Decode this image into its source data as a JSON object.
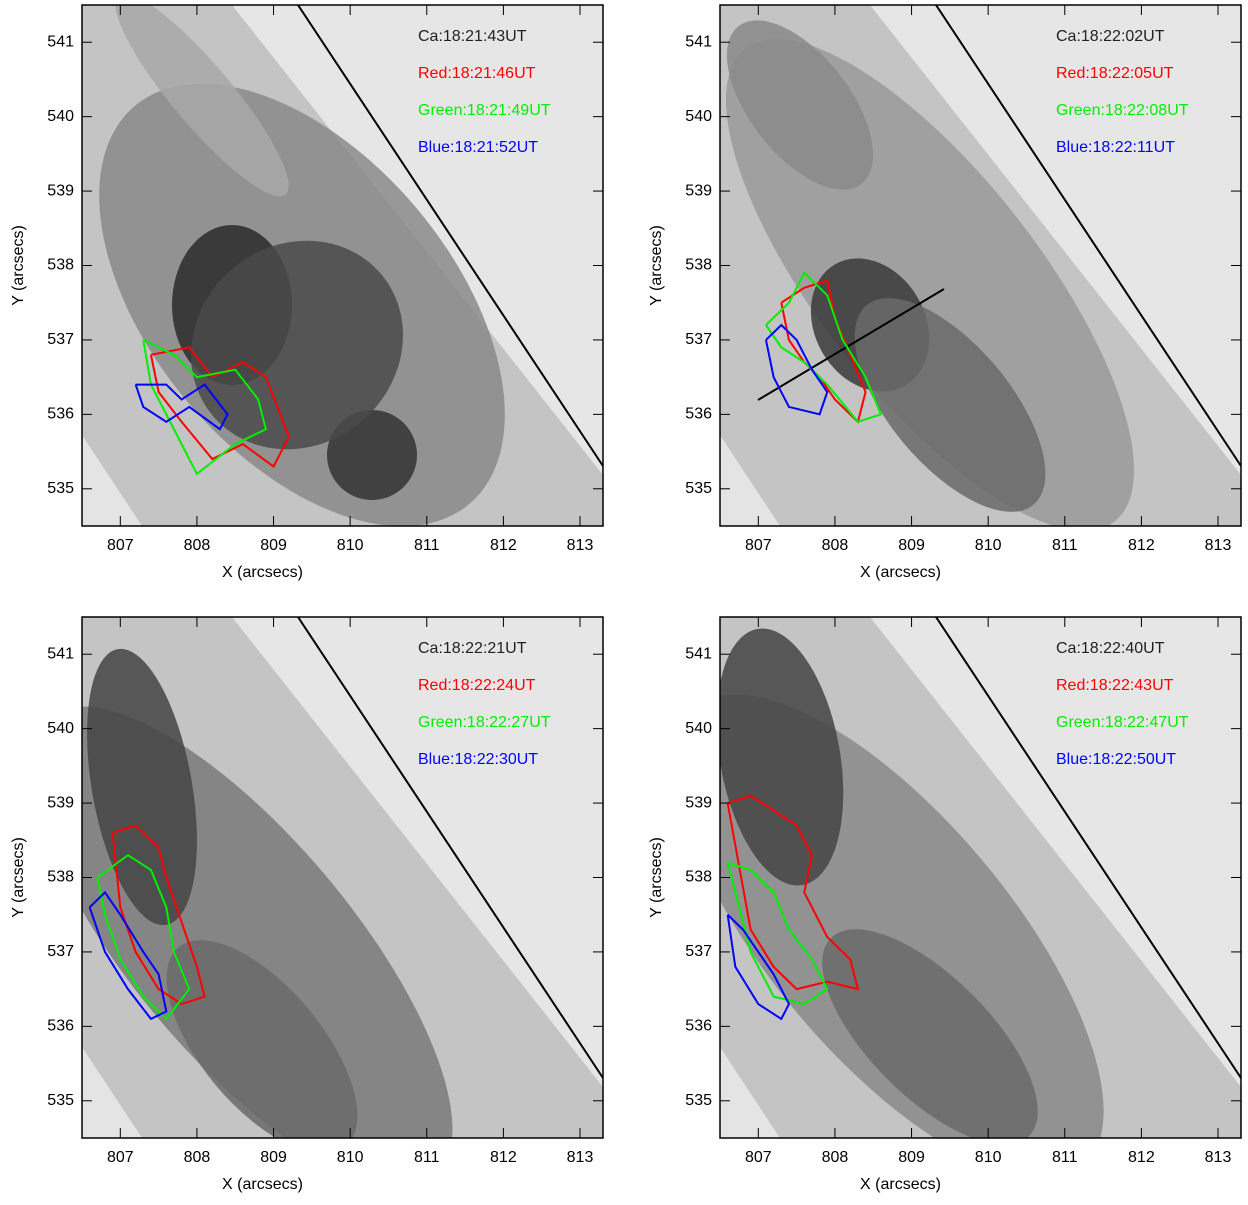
{
  "chart_data": [
    {
      "type": "image",
      "image_label": "Ca:18:21:43UT",
      "xlabel": "X (arcsecs)",
      "ylabel": "Y (arcsecs)",
      "xlim": [
        806.5,
        813.3
      ],
      "ylim": [
        534.5,
        541.5
      ],
      "xticks": [
        807,
        808,
        809,
        810,
        811,
        812,
        813
      ],
      "yticks": [
        535,
        536,
        537,
        538,
        539,
        540,
        541
      ],
      "series": [
        {
          "name": "Red:18:21:46UT",
          "color": "#ff0000",
          "x": [
            807.4,
            807.9,
            808.2,
            808.6,
            808.9,
            809.2,
            809.0,
            808.6,
            808.2,
            807.8,
            807.5,
            807.4
          ],
          "y": [
            536.8,
            536.9,
            536.5,
            536.7,
            536.5,
            535.7,
            535.3,
            535.6,
            535.4,
            535.9,
            536.3,
            536.8
          ]
        },
        {
          "name": "Green:18:21:49UT",
          "color": "#00ee00",
          "x": [
            807.3,
            807.7,
            808.0,
            808.5,
            808.8,
            808.9,
            808.5,
            808.0,
            807.8,
            807.6,
            807.4,
            807.3
          ],
          "y": [
            537.0,
            536.8,
            536.5,
            536.6,
            536.2,
            535.8,
            535.6,
            535.2,
            535.6,
            536.0,
            536.4,
            537.0
          ]
        },
        {
          "name": "Blue:18:21:52UT",
          "color": "#0000ff",
          "x": [
            807.2,
            807.6,
            807.8,
            808.1,
            808.4,
            808.3,
            807.9,
            807.6,
            807.3,
            807.2
          ],
          "y": [
            536.4,
            536.4,
            536.2,
            536.4,
            536.0,
            535.8,
            536.1,
            535.9,
            536.1,
            536.4
          ]
        }
      ]
    },
    {
      "type": "image",
      "image_label": "Ca:18:22:02UT",
      "xlabel": "X (arcsecs)",
      "ylabel": "Y (arcsecs)",
      "xlim": [
        806.5,
        813.3
      ],
      "ylim": [
        534.5,
        541.5
      ],
      "xticks": [
        807,
        808,
        809,
        810,
        811,
        812,
        813
      ],
      "yticks": [
        535,
        536,
        537,
        538,
        539,
        540,
        541
      ],
      "series": [
        {
          "name": "Red:18:22:05UT",
          "color": "#ff0000",
          "x": [
            807.3,
            807.6,
            807.9,
            808.0,
            808.2,
            808.4,
            808.3,
            808.0,
            807.8,
            807.6,
            807.4,
            807.3
          ],
          "y": [
            537.5,
            537.7,
            537.8,
            537.3,
            536.8,
            536.3,
            535.9,
            536.2,
            536.5,
            536.7,
            537.0,
            537.5
          ]
        },
        {
          "name": "Green:18:22:08UT",
          "color": "#00ee00",
          "x": [
            807.1,
            807.4,
            807.6,
            807.9,
            808.1,
            808.4,
            808.6,
            808.3,
            807.9,
            807.6,
            807.3,
            807.1
          ],
          "y": [
            537.2,
            537.5,
            537.9,
            537.6,
            537.0,
            536.5,
            536.0,
            535.9,
            536.4,
            536.7,
            536.9,
            537.2
          ]
        },
        {
          "name": "Blue:18:22:11UT",
          "color": "#0000ff",
          "x": [
            807.1,
            807.3,
            807.5,
            807.7,
            807.9,
            807.8,
            807.4,
            807.2,
            807.1
          ],
          "y": [
            537.0,
            537.2,
            537.0,
            536.6,
            536.3,
            536.0,
            536.1,
            536.5,
            537.0
          ]
        }
      ]
    },
    {
      "type": "image",
      "image_label": "Ca:18:22:21UT",
      "xlabel": "X (arcsecs)",
      "ylabel": "Y (arcsecs)",
      "xlim": [
        806.5,
        813.3
      ],
      "ylim": [
        534.5,
        541.5
      ],
      "xticks": [
        807,
        808,
        809,
        810,
        811,
        812,
        813
      ],
      "yticks": [
        535,
        536,
        537,
        538,
        539,
        540,
        541
      ],
      "series": [
        {
          "name": "Red:18:22:24UT",
          "color": "#ff0000",
          "x": [
            806.9,
            807.2,
            807.5,
            807.6,
            807.8,
            808.0,
            808.1,
            807.8,
            807.5,
            807.2,
            807.0,
            806.9
          ],
          "y": [
            538.6,
            538.7,
            538.4,
            538.0,
            537.4,
            536.8,
            536.4,
            536.3,
            536.5,
            537.0,
            537.6,
            538.6
          ]
        },
        {
          "name": "Green:18:22:27UT",
          "color": "#00ee00",
          "x": [
            806.7,
            807.1,
            807.4,
            807.6,
            807.7,
            807.9,
            807.6,
            807.3,
            807.0,
            806.8,
            806.7
          ],
          "y": [
            538.0,
            538.3,
            538.1,
            537.6,
            537.0,
            536.5,
            536.1,
            536.4,
            536.9,
            537.5,
            538.0
          ]
        },
        {
          "name": "Blue:18:22:30UT",
          "color": "#0000ff",
          "x": [
            806.6,
            806.8,
            807.0,
            807.3,
            807.5,
            807.6,
            807.4,
            807.1,
            806.8,
            806.6
          ],
          "y": [
            537.6,
            537.8,
            537.5,
            537.0,
            536.7,
            536.2,
            536.1,
            536.5,
            537.0,
            537.6
          ]
        }
      ]
    },
    {
      "type": "image",
      "image_label": "Ca:18:22:40UT",
      "xlabel": "X (arcsecs)",
      "ylabel": "Y (arcsecs)",
      "xlim": [
        806.5,
        813.3
      ],
      "ylim": [
        534.5,
        541.5
      ],
      "xticks": [
        807,
        808,
        809,
        810,
        811,
        812,
        813
      ],
      "yticks": [
        535,
        536,
        537,
        538,
        539,
        540,
        541
      ],
      "series": [
        {
          "name": "Red:18:22:43UT",
          "color": "#ff0000",
          "x": [
            806.6,
            806.9,
            807.2,
            807.5,
            807.7,
            807.6,
            807.9,
            808.2,
            808.3,
            807.9,
            807.5,
            807.2,
            806.9,
            806.6
          ],
          "y": [
            539.0,
            539.1,
            538.9,
            538.7,
            538.3,
            537.8,
            537.2,
            536.9,
            536.5,
            536.6,
            536.5,
            536.8,
            537.3,
            539.0
          ]
        },
        {
          "name": "Green:18:22:47UT",
          "color": "#00ee00",
          "x": [
            806.6,
            806.9,
            807.2,
            807.4,
            807.7,
            807.9,
            807.6,
            807.2,
            806.9,
            806.6
          ],
          "y": [
            538.2,
            538.1,
            537.8,
            537.3,
            536.9,
            536.5,
            536.3,
            536.4,
            537.0,
            538.2
          ]
        },
        {
          "name": "Blue:18:22:50UT",
          "color": "#0000ff",
          "x": [
            806.6,
            806.8,
            807.0,
            807.2,
            807.4,
            807.3,
            807.0,
            806.7,
            806.6
          ],
          "y": [
            537.5,
            537.3,
            537.0,
            536.7,
            536.3,
            536.1,
            536.3,
            536.8,
            537.5
          ]
        }
      ]
    }
  ]
}
